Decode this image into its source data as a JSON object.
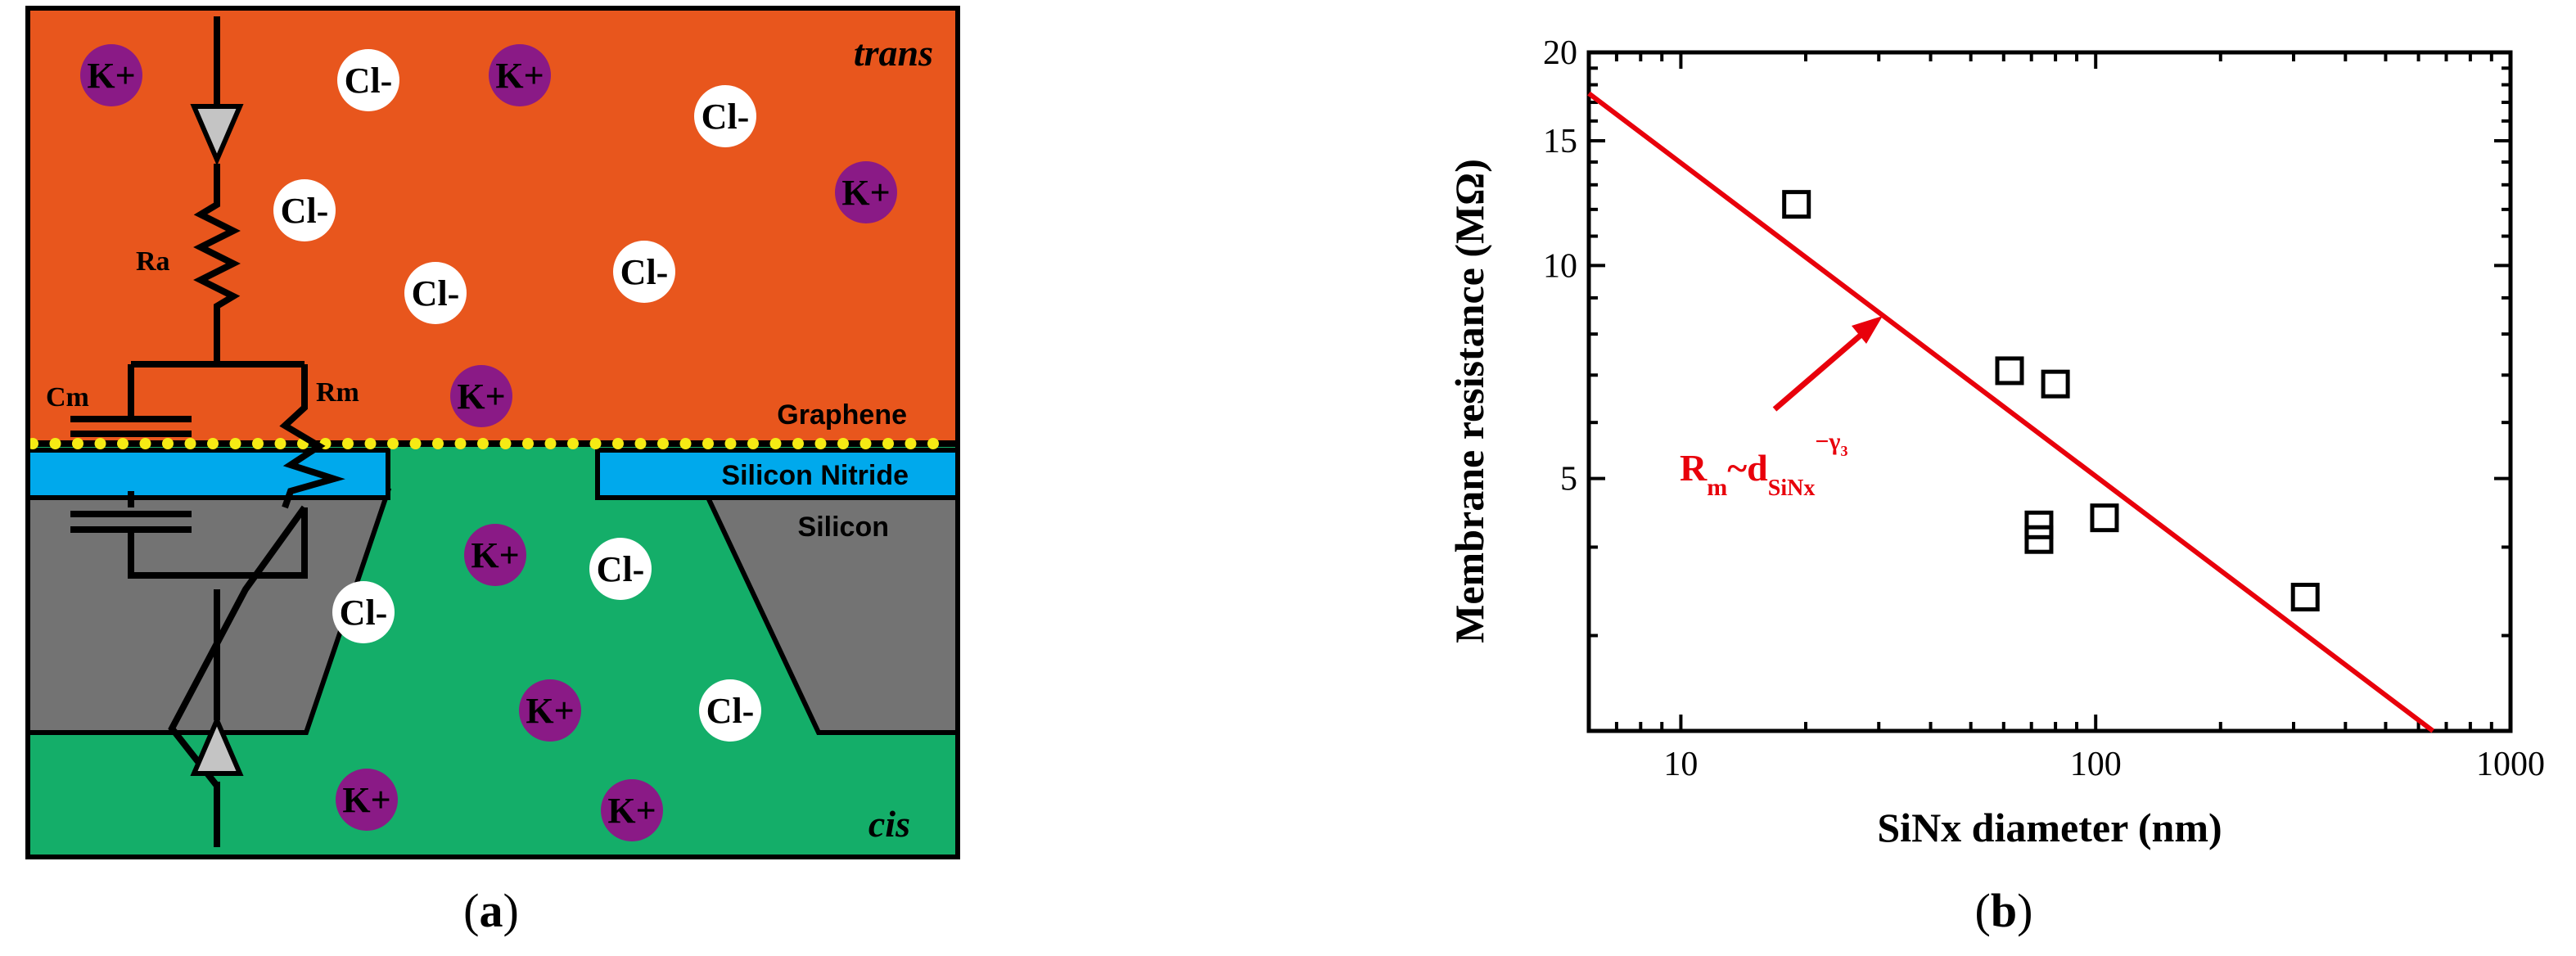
{
  "panel_a": {
    "label": "a",
    "regions": {
      "trans": "trans",
      "cis": "cis"
    },
    "layers": {
      "graphene": "Graphene",
      "silicon_nitride": "Silicon Nitride",
      "silicon": "Silicon"
    },
    "circuit": {
      "ra": "Ra",
      "rm": "Rm",
      "cm": "Cm"
    },
    "ions": {
      "trans": [
        "K+",
        "Cl-",
        "K+",
        "Cl-",
        "Cl-",
        "K+",
        "Cl-",
        "Cl-",
        "K+"
      ],
      "cis": [
        "K+",
        "Cl-",
        "Cl-",
        "K+",
        "Cl-",
        "K+",
        "K+"
      ]
    },
    "colors": {
      "trans": "#e8561d",
      "cis": "#14ae69",
      "silicon": "#737373",
      "silicon_nitride": "#00a9ec",
      "graphene_dots": "#f5ea14",
      "k_ion": "#8a1a86",
      "cl_ion": "#ffffff"
    }
  },
  "panel_b": {
    "label": "b",
    "annotation": {
      "base": "R",
      "sub1": "m",
      "mid": "~d",
      "sub2": "SiNx",
      "sup": "−γ",
      "supsub": "3"
    },
    "colors": {
      "fit_line": "#e8000b",
      "markers": "#000000"
    }
  },
  "chart_data": {
    "type": "scatter",
    "xlabel": "SiNx diameter (nm)",
    "ylabel": "Membrane resistance (MΩ)",
    "xscale": "log",
    "yscale": "log",
    "xlim": [
      6,
      1000
    ],
    "ylim": [
      2.2,
      20
    ],
    "x_ticks": [
      10,
      100,
      1000
    ],
    "y_ticks": [
      5,
      10,
      15,
      20
    ],
    "grid": false,
    "series": [
      {
        "type": "scatter",
        "marker": "open-square",
        "x": [
          19,
          62,
          80,
          73,
          73,
          105,
          320
        ],
        "y": [
          12.2,
          7.1,
          6.8,
          4.3,
          4.1,
          4.4,
          3.4
        ]
      },
      {
        "type": "line",
        "x": [
          6,
          650
        ],
        "y": [
          17.5,
          2.2
        ]
      }
    ]
  }
}
